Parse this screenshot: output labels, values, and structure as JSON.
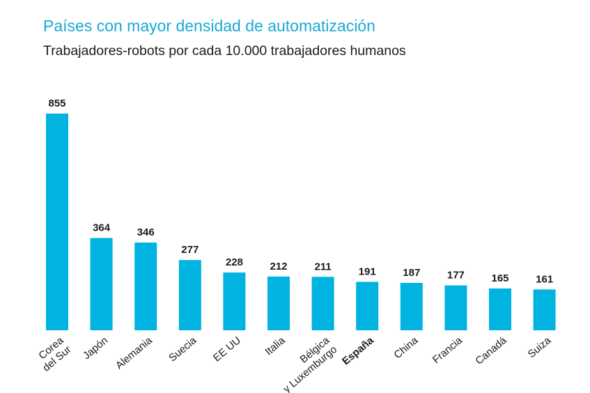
{
  "chart_data": {
    "type": "bar",
    "title": "Países con mayor densidad de automatización",
    "subtitle": "Trabajadores-robots por cada 10.000 trabajadores humanos",
    "categories": [
      [
        "Corea",
        "del Sur"
      ],
      [
        "Japón"
      ],
      [
        "Alemania"
      ],
      [
        "Suecia"
      ],
      [
        "EE UU"
      ],
      [
        "Italia"
      ],
      [
        "Bélgica",
        "y Luxemburgo"
      ],
      [
        "España"
      ],
      [
        "China"
      ],
      [
        "Francia"
      ],
      [
        "Canadá"
      ],
      [
        "Suiza"
      ]
    ],
    "values": [
      855,
      364,
      346,
      277,
      228,
      212,
      211,
      191,
      187,
      177,
      165,
      161
    ],
    "highlight_category": "España",
    "bar_color": "#00b3e0",
    "ylim": [
      0,
      855
    ],
    "grid": false,
    "legend": "none"
  }
}
